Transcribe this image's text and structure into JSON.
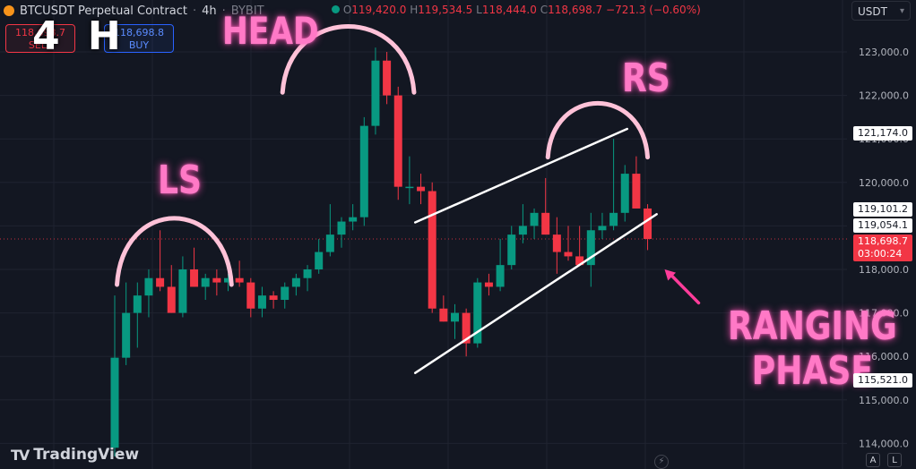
{
  "header": {
    "symbol": "BTCUSDT Perpetual Contract",
    "separator": "·",
    "interval": "4h",
    "exchange": "BYBIT",
    "ohlc": {
      "o_label": "O",
      "o": "119,420.0",
      "h_label": "H",
      "h": "119,534.5",
      "l_label": "L",
      "l": "118,444.0",
      "c_label": "C",
      "c": "118,698.7",
      "change": "−721.3 (−0.60%)"
    }
  },
  "trade": {
    "sell_price": "118,698.7",
    "sell_label": "SELL",
    "buy_price": "118,698.8",
    "buy_label": "BUY"
  },
  "currency": "USDT",
  "timeframe_overlay": "4 H",
  "annotations": {
    "head": "HEAD",
    "rs": "RS",
    "ls": "LS",
    "ranging_1": "RANGING",
    "ranging_2": "PHASE"
  },
  "price_labels": {
    "level_1": "121,174.0",
    "level_2": "119,101.2",
    "level_3": "119,054.1",
    "current": "118,698.7",
    "countdown": "03:00:24",
    "level_4": "115,521.0"
  },
  "brand": "TradingView",
  "bottom_buttons": {
    "a": "A",
    "l": "L"
  },
  "colors": {
    "up": "#089981",
    "down": "#f23645",
    "background": "#131722",
    "annotation": "#ff79c6",
    "grid": "#1f2330"
  },
  "chart_data": {
    "type": "candlestick",
    "ylim": [
      113800,
      124000
    ],
    "y_ticks": [
      114000,
      115000,
      116000,
      117000,
      118000,
      119000,
      120000,
      121000,
      122000,
      123000
    ],
    "y_tick_labels": [
      "114,000.0",
      "115,000.0",
      "116,000.0",
      "117,000.0",
      "118,000.0",
      "119,000.0",
      "120,000.0",
      "121,000.0",
      "122,000.0",
      "123,000.0"
    ],
    "current_price": 118698.7,
    "candles": [
      {
        "o": 113900,
        "h": 117400,
        "l": 113700,
        "c": 115970
      },
      {
        "o": 115970,
        "h": 117700,
        "l": 115800,
        "c": 117000
      },
      {
        "o": 117000,
        "h": 117700,
        "l": 116200,
        "c": 117400
      },
      {
        "o": 117400,
        "h": 118000,
        "l": 116900,
        "c": 117800
      },
      {
        "o": 117800,
        "h": 118900,
        "l": 117500,
        "c": 117600
      },
      {
        "o": 117600,
        "h": 118100,
        "l": 117000,
        "c": 117000
      },
      {
        "o": 117000,
        "h": 118300,
        "l": 116900,
        "c": 118000
      },
      {
        "o": 118000,
        "h": 118500,
        "l": 117600,
        "c": 117600
      },
      {
        "o": 117600,
        "h": 117900,
        "l": 117300,
        "c": 117800
      },
      {
        "o": 117800,
        "h": 118000,
        "l": 117400,
        "c": 117700
      },
      {
        "o": 117700,
        "h": 117900,
        "l": 117500,
        "c": 117800
      },
      {
        "o": 117800,
        "h": 118200,
        "l": 117600,
        "c": 117700
      },
      {
        "o": 117700,
        "h": 117800,
        "l": 116900,
        "c": 117100
      },
      {
        "o": 117100,
        "h": 117600,
        "l": 116900,
        "c": 117400
      },
      {
        "o": 117400,
        "h": 117500,
        "l": 117100,
        "c": 117300
      },
      {
        "o": 117300,
        "h": 117700,
        "l": 117100,
        "c": 117600
      },
      {
        "o": 117600,
        "h": 117900,
        "l": 117400,
        "c": 117800
      },
      {
        "o": 117800,
        "h": 118100,
        "l": 117500,
        "c": 118000
      },
      {
        "o": 118000,
        "h": 118700,
        "l": 117900,
        "c": 118400
      },
      {
        "o": 118400,
        "h": 119500,
        "l": 118300,
        "c": 118800
      },
      {
        "o": 118800,
        "h": 119200,
        "l": 118500,
        "c": 119100
      },
      {
        "o": 119100,
        "h": 119500,
        "l": 118900,
        "c": 119200
      },
      {
        "o": 119200,
        "h": 121500,
        "l": 119000,
        "c": 121300
      },
      {
        "o": 121300,
        "h": 123100,
        "l": 121100,
        "c": 122800
      },
      {
        "o": 122800,
        "h": 123000,
        "l": 121800,
        "c": 122000
      },
      {
        "o": 122000,
        "h": 122200,
        "l": 119600,
        "c": 119900
      },
      {
        "o": 119900,
        "h": 120600,
        "l": 119500,
        "c": 119900
      },
      {
        "o": 119900,
        "h": 120200,
        "l": 119500,
        "c": 119800
      },
      {
        "o": 119800,
        "h": 120000,
        "l": 117000,
        "c": 117100
      },
      {
        "o": 117100,
        "h": 117400,
        "l": 116800,
        "c": 116800
      },
      {
        "o": 116800,
        "h": 117200,
        "l": 116400,
        "c": 117000
      },
      {
        "o": 117000,
        "h": 117100,
        "l": 116000,
        "c": 116300
      },
      {
        "o": 116300,
        "h": 117800,
        "l": 116200,
        "c": 117700
      },
      {
        "o": 117700,
        "h": 117900,
        "l": 117400,
        "c": 117600
      },
      {
        "o": 117600,
        "h": 118700,
        "l": 117500,
        "c": 118100
      },
      {
        "o": 118100,
        "h": 119000,
        "l": 118000,
        "c": 118800
      },
      {
        "o": 118800,
        "h": 119500,
        "l": 118600,
        "c": 119000
      },
      {
        "o": 119000,
        "h": 119400,
        "l": 118700,
        "c": 119300
      },
      {
        "o": 119300,
        "h": 120100,
        "l": 118800,
        "c": 118800
      },
      {
        "o": 118800,
        "h": 119200,
        "l": 117900,
        "c": 118400
      },
      {
        "o": 118400,
        "h": 119000,
        "l": 118200,
        "c": 118300
      },
      {
        "o": 118300,
        "h": 119000,
        "l": 118100,
        "c": 118100
      },
      {
        "o": 118100,
        "h": 119300,
        "l": 117600,
        "c": 118900
      },
      {
        "o": 118900,
        "h": 119300,
        "l": 118700,
        "c": 119000
      },
      {
        "o": 119000,
        "h": 121000,
        "l": 118900,
        "c": 119300
      },
      {
        "o": 119300,
        "h": 120400,
        "l": 119100,
        "c": 120200
      },
      {
        "o": 120200,
        "h": 120600,
        "l": 119500,
        "c": 119400
      },
      {
        "o": 119400,
        "h": 119500,
        "l": 118444,
        "c": 118698.7
      }
    ],
    "trendlines": [
      {
        "t0": 26.5,
        "p0": 119080,
        "t1": 45.2,
        "p1": 121230
      },
      {
        "t0": 26.5,
        "p0": 115620,
        "t1": 47.8,
        "p1": 119270
      }
    ],
    "arcs": [
      {
        "t0": 0.2,
        "t1": 10.3,
        "p_base": 117650,
        "p_top": 119240
      },
      {
        "t0": 14.8,
        "t1": 26.4,
        "p_base": 122070,
        "p_top": 123650
      },
      {
        "t0": 38.2,
        "t1": 47.0,
        "p_base": 120580,
        "p_top": 121870
      }
    ],
    "arrow": {
      "from_t": 51.5,
      "from_p": 117230,
      "to_t": 48.5,
      "to_p": 118000
    }
  }
}
